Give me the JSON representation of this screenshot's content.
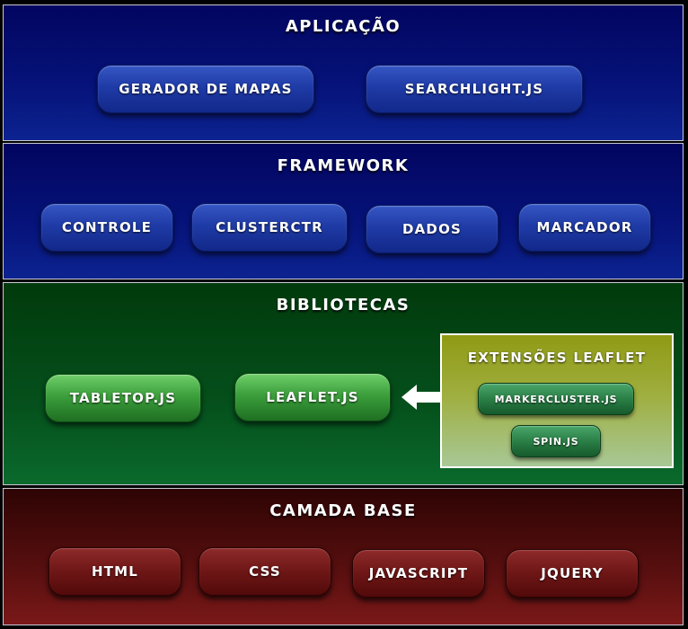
{
  "layers": {
    "app": {
      "title": "APLICAÇÃO",
      "items": [
        "GERADOR DE MAPAS",
        "SEARCHLIGHT.JS"
      ]
    },
    "framework": {
      "title": "FRAMEWORK",
      "items": [
        "CONTROLE",
        "CLUSTERCTR",
        "DADOS",
        "MARCADOR"
      ]
    },
    "libraries": {
      "title": "BIBLIOTECAS",
      "items": [
        "TABLETOP.JS",
        "LEAFLET.JS"
      ],
      "extensions": {
        "title": "EXTENSÕES LEAFLET",
        "items": [
          "MARKERCLUSTER.JS",
          "SPIN.JS"
        ]
      }
    },
    "base": {
      "title": "CAMADA BASE",
      "items": [
        "HTML",
        "CSS",
        "JAVASCRIPT",
        "JQUERY"
      ]
    }
  },
  "colors": {
    "app_layer": "#06137a",
    "framework_layer": "#06137a",
    "libraries_layer": "#05501c",
    "base_layer": "#580f0f",
    "extensions_box": "#9fae3e",
    "arrow": "#ffffff"
  },
  "icons": {
    "extension_arrow": "left-arrow-icon"
  }
}
